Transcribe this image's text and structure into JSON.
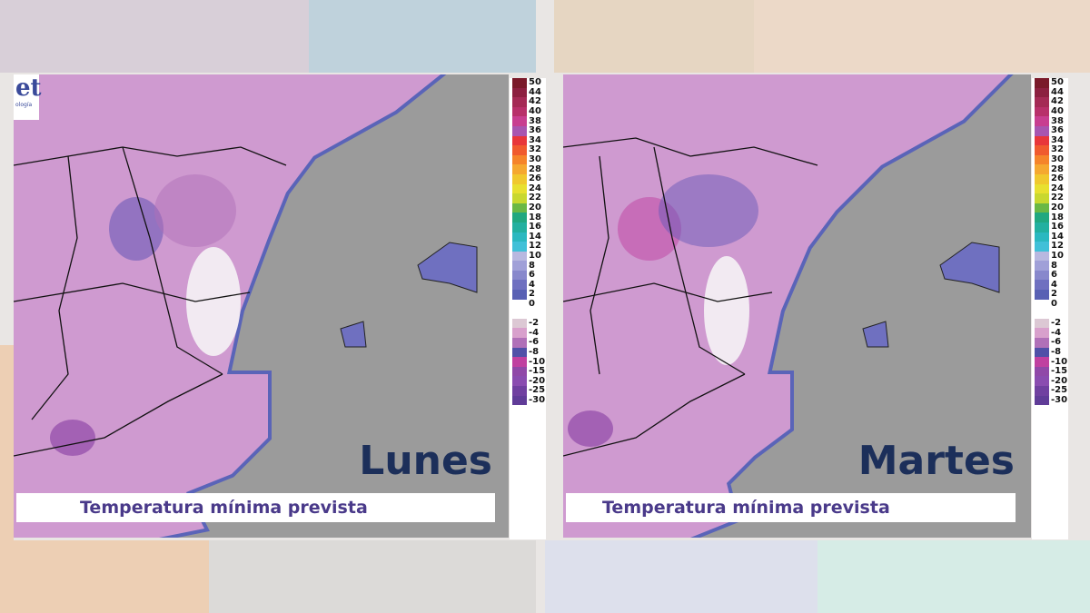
{
  "panels": [
    {
      "day": "Lunes",
      "caption": "Temperatura mínima prevista"
    },
    {
      "day": "Martes",
      "caption": "Temperatura mínima prevista"
    }
  ],
  "logo": {
    "text": "et",
    "subtext": "ología"
  },
  "legend": {
    "labels": [
      "50",
      "44",
      "42",
      "40",
      "38",
      "36",
      "34",
      "32",
      "30",
      "28",
      "26",
      "24",
      "22",
      "20",
      "18",
      "16",
      "14",
      "12",
      "10",
      "8",
      "6",
      "4",
      "2",
      "0",
      "",
      "-2",
      "-4",
      "-6",
      "-8",
      "-10",
      "-15",
      "-20",
      "-25",
      "-30"
    ],
    "colors": [
      "#7a1a2a",
      "#8c2040",
      "#a42a55",
      "#b8306a",
      "#c83e90",
      "#a855b0",
      "#e8363a",
      "#f05a2e",
      "#f5842a",
      "#f5a830",
      "#f0c82e",
      "#e8e030",
      "#c8d830",
      "#6ab845",
      "#20a880",
      "#22b0a0",
      "#2ab8c0",
      "#40c0d8",
      "#b8b8e0",
      "#a0a0d8",
      "#8888cc",
      "#6f70c0",
      "#5860b4",
      "#ffffff",
      "#ffffff",
      "#dcc8d4",
      "#d8a0cc",
      "#b070b8",
      "#5050a8",
      "#c040a0",
      "#9048a8",
      "#8a4cb0",
      "#7040a0",
      "#603c98"
    ]
  },
  "colors": {
    "sea": "#9b9b9b",
    "land": "#cf9ad0",
    "coast": "#5a64b8",
    "text": "#1c2f5a"
  }
}
